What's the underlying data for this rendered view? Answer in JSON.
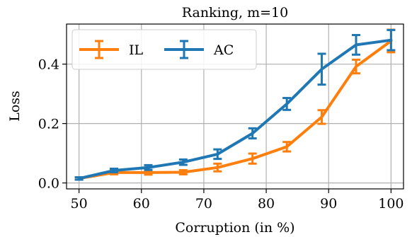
{
  "chart_data": {
    "type": "line",
    "title": "Ranking, m=10",
    "xlabel": "Corruption (in %)",
    "ylabel": "Loss",
    "xlim": [
      48,
      102
    ],
    "ylim": [
      -0.02,
      0.535
    ],
    "xticks": [
      50,
      60,
      70,
      80,
      90,
      100
    ],
    "yticks": [
      0.0,
      0.2,
      0.4
    ],
    "ytick_labels": [
      "0.0",
      "0.2",
      "0.4"
    ],
    "grid": true,
    "legend_position": "top-left",
    "x": [
      50,
      55.6,
      61.1,
      66.7,
      72.2,
      77.8,
      83.3,
      88.9,
      94.4,
      100
    ],
    "series": [
      {
        "name": "IL",
        "color": "#ff7f0e",
        "values": [
          0.015,
          0.035,
          0.035,
          0.036,
          0.052,
          0.082,
          0.122,
          0.222,
          0.392,
          0.478
        ],
        "errors": [
          0.004,
          0.006,
          0.007,
          0.007,
          0.013,
          0.017,
          0.016,
          0.023,
          0.023,
          0.038
        ]
      },
      {
        "name": "AC",
        "color": "#1f77b4",
        "values": [
          0.015,
          0.042,
          0.052,
          0.07,
          0.097,
          0.167,
          0.266,
          0.383,
          0.465,
          0.481
        ],
        "errors": [
          0.004,
          0.006,
          0.008,
          0.009,
          0.016,
          0.017,
          0.02,
          0.052,
          0.033,
          0.034
        ]
      }
    ]
  }
}
